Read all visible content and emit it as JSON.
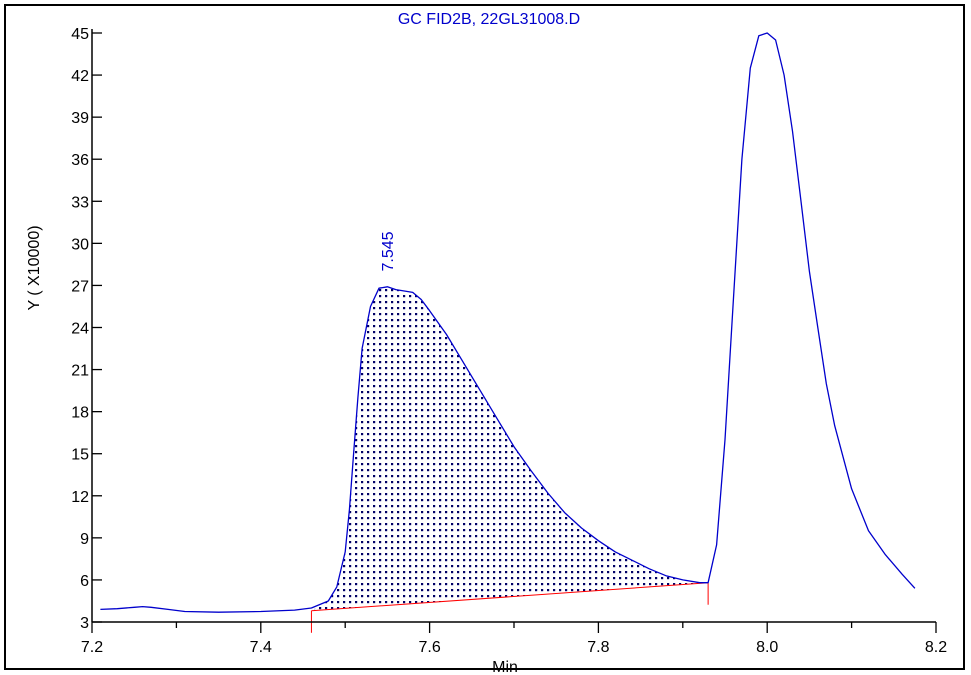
{
  "chart_data": {
    "type": "line",
    "title": "GC FID2B, 22GL31008.D",
    "xlabel": "Min",
    "ylabel": "Y ( X10000)",
    "xlim": [
      7.2,
      8.2
    ],
    "ylim": [
      3,
      45
    ],
    "x_ticks": [
      7.2,
      7.4,
      7.6,
      7.8,
      8.0,
      8.2
    ],
    "x_tick_labels": [
      "7.2",
      "7.4",
      "7.6",
      "7.8",
      "8.0",
      "8.2"
    ],
    "y_ticks": [
      3,
      6,
      9,
      12,
      15,
      18,
      21,
      24,
      27,
      30,
      33,
      36,
      39,
      42,
      45
    ],
    "y_tick_labels": [
      "3",
      "6",
      "9",
      "12",
      "15",
      "18",
      "21",
      "24",
      "27",
      "30",
      "33",
      "36",
      "39",
      "42",
      "45"
    ],
    "grid": false,
    "colors": {
      "trace": "#0000cc",
      "baseline": "#ff0000",
      "axis": "#000000",
      "fill_dots": "#000066"
    },
    "series": [
      {
        "x": [
          7.21,
          7.23,
          7.25,
          7.26,
          7.27,
          7.29,
          7.31,
          7.35,
          7.4,
          7.44,
          7.46,
          7.48,
          7.49,
          7.5,
          7.505,
          7.51,
          7.515,
          7.52,
          7.53,
          7.54,
          7.55,
          7.56,
          7.57,
          7.58,
          7.59,
          7.6,
          7.62,
          7.64,
          7.66,
          7.68,
          7.7,
          7.72,
          7.74,
          7.76,
          7.78,
          7.8,
          7.82,
          7.84,
          7.86,
          7.88,
          7.9,
          7.92,
          7.93,
          7.94,
          7.95,
          7.96,
          7.97,
          7.98,
          7.99,
          8.0,
          8.01,
          8.02,
          8.03,
          8.04,
          8.05,
          8.06,
          8.07,
          8.08,
          8.1,
          8.12,
          8.14,
          8.16,
          8.175
        ],
        "y": [
          3.9,
          3.95,
          4.05,
          4.1,
          4.05,
          3.9,
          3.75,
          3.7,
          3.75,
          3.85,
          4.0,
          4.5,
          5.5,
          8.0,
          11.0,
          15.0,
          19.0,
          22.5,
          25.5,
          26.8,
          26.9,
          26.7,
          26.6,
          26.5,
          26.0,
          25.2,
          23.5,
          21.5,
          19.5,
          17.5,
          15.5,
          13.8,
          12.2,
          10.8,
          9.7,
          8.8,
          8.0,
          7.4,
          6.8,
          6.3,
          6.0,
          5.8,
          5.8,
          8.5,
          16.0,
          26.0,
          36.0,
          42.5,
          44.8,
          45.0,
          44.5,
          42.0,
          38.0,
          33.0,
          28.0,
          24.0,
          20.0,
          17.0,
          12.5,
          9.5,
          7.8,
          6.4,
          5.4
        ]
      }
    ],
    "peaks": [
      {
        "label": "7.545",
        "x": 7.545,
        "start": 7.46,
        "end": 7.93,
        "baseline_start_y": 3.8,
        "baseline_end_y": 5.8
      }
    ]
  }
}
